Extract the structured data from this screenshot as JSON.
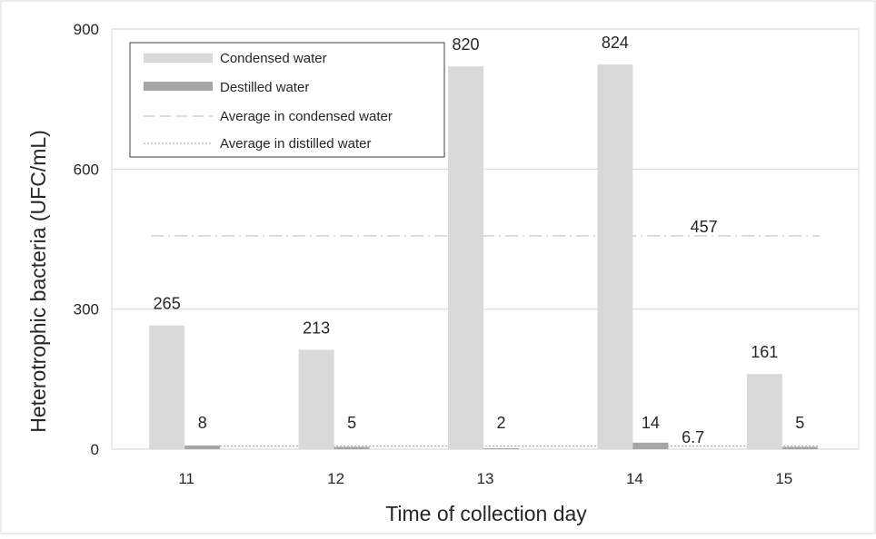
{
  "chart_data": {
    "type": "bar",
    "xlabel": "Time of collection day",
    "ylabel": "Heterotrophic bacteria (UFC/mL)",
    "ylim": [
      0,
      900
    ],
    "yticks": [
      "0",
      "300",
      "600",
      "900"
    ],
    "categories": [
      "11",
      "12",
      "13",
      "14",
      "15"
    ],
    "series": [
      {
        "name": "Condensed water",
        "values": [
          265,
          213,
          820,
          824,
          161
        ],
        "labels": [
          "265",
          "213",
          "820",
          "824",
          "161"
        ],
        "color": "#d9d9d9"
      },
      {
        "name": "Destilled water",
        "values": [
          8,
          5,
          2,
          14,
          5
        ],
        "labels": [
          "8",
          "5",
          "2",
          "14",
          "5"
        ],
        "color": "#a6a6a6"
      }
    ],
    "reference_lines": [
      {
        "name": "Average in condensed water",
        "value": 457,
        "label": "457",
        "style": "dash-dot",
        "color": "#d0d0d0"
      },
      {
        "name": "Average in distilled water",
        "value": 6.7,
        "label": "6.7",
        "style": "dotted",
        "color": "#a6a6a6"
      }
    ],
    "grid": true,
    "legend": "top-left"
  }
}
